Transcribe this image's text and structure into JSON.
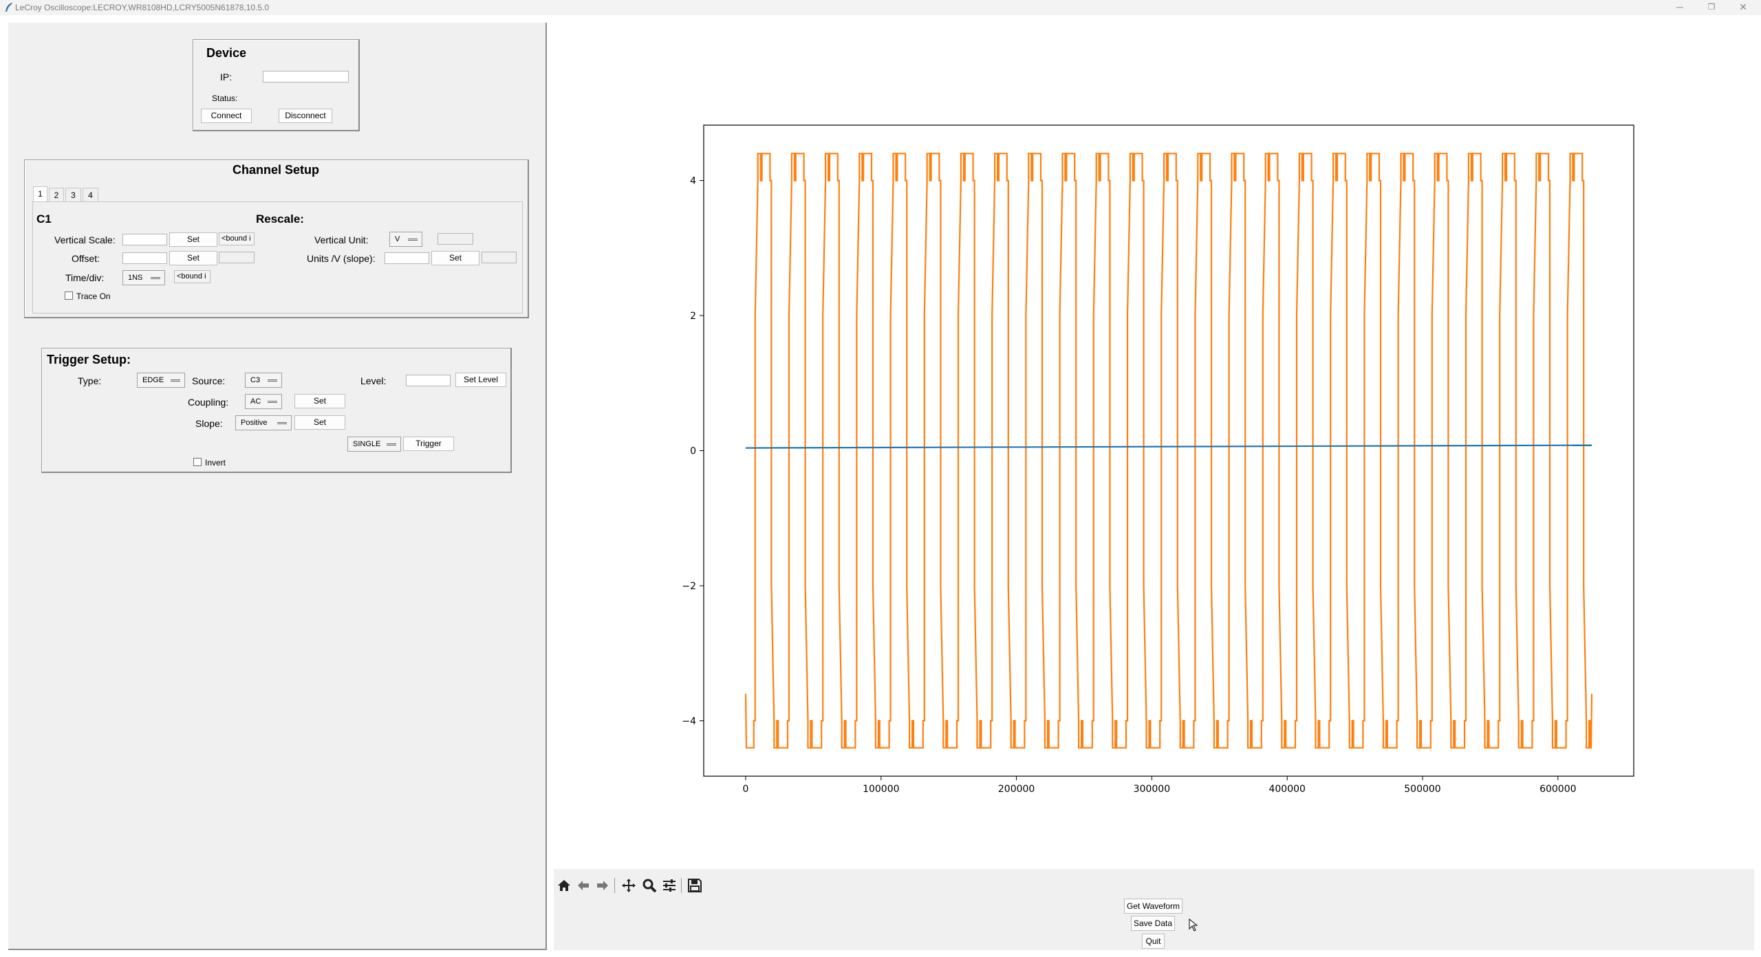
{
  "window": {
    "title": "LeCroy Oscilloscope:LECROY,WR8108HD,LCRY5005N61878,10.5.0",
    "minimize_glyph": "─",
    "restore_glyph": "❐",
    "close_glyph": "✕"
  },
  "device": {
    "title": "Device",
    "ip_label": "IP:",
    "ip_value": "",
    "status_label": "Status:",
    "status_value": "",
    "connect_label": "Connect",
    "disconnect_label": "Disconnect"
  },
  "channel_setup": {
    "title": "Channel Setup",
    "tabs": [
      "1",
      "2",
      "3",
      "4"
    ],
    "active_tab": "1",
    "channel_name": "C1",
    "rescale_label": "Rescale:",
    "vertical_scale_label": "Vertical Scale:",
    "vertical_scale_value": "",
    "offset_label": "Offset:",
    "offset_value": "",
    "time_div_label": "Time/div:",
    "time_div_value": "1NS",
    "set_label": "Set",
    "bound_text": "<bound i",
    "trace_on_label": "Trace On",
    "vertical_unit_label": "Vertical Unit:",
    "vertical_unit_value": "V",
    "units_slope_label": "Units /V (slope):",
    "units_slope_value": ""
  },
  "trigger_setup": {
    "title": "Trigger Setup:",
    "type_label": "Type:",
    "type_value": "EDGE",
    "source_label": "Source:",
    "source_value": "C3",
    "level_label": "Level:",
    "level_value": "",
    "set_level_label": "Set Level",
    "coupling_label": "Coupling:",
    "coupling_value": "AC",
    "slope_label": "Slope:",
    "slope_value": "Positive",
    "set_label": "Set",
    "mode_value": "SINGLE",
    "trigger_label": "Trigger",
    "invert_label": "Invert"
  },
  "toolbar": {
    "icons": [
      "home-icon",
      "back-icon",
      "forward-icon",
      "pan-icon",
      "zoom-icon",
      "configure-icon",
      "save-icon"
    ]
  },
  "actions": {
    "get_waveform_label": "Get Waveform",
    "save_data_label": "Save Data",
    "quit_label": "Quit"
  },
  "chart_data": {
    "type": "line",
    "title": "",
    "xlabel": "",
    "ylabel": "",
    "xlim": [
      -31000,
      656000
    ],
    "ylim": [
      -4.82,
      4.82
    ],
    "x_ticks": [
      0,
      100000,
      200000,
      300000,
      400000,
      500000,
      600000
    ],
    "y_ticks": [
      -4,
      -2,
      0,
      2,
      4
    ],
    "grid": false,
    "legend": "none",
    "series": [
      {
        "color": "#ff7f0e",
        "shape": "stepped square-like wave",
        "x_start": 0,
        "x_end": 625000,
        "period": 25000,
        "cycles": 25,
        "high": 4.4,
        "low": -4.4,
        "start_value": -3.6,
        "end_value": -3.6
      },
      {
        "color": "#1f77b4",
        "shape": "near-flat line",
        "x": [
          0,
          625000
        ],
        "y": [
          0.04,
          0.08
        ]
      }
    ]
  }
}
